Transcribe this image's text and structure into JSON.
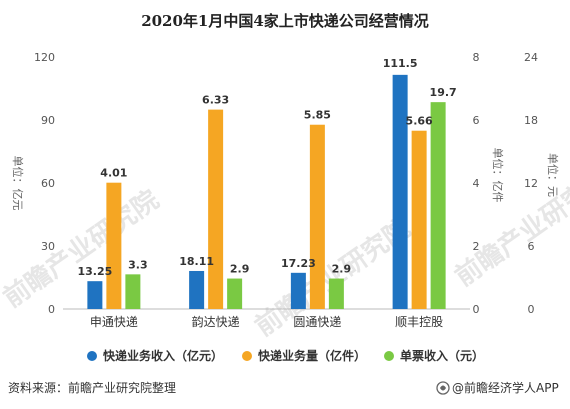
{
  "title": "2020年1月中国4家上市快递公司经营情况",
  "colors": {
    "revenue": "#1f73c1",
    "volume": "#f5a623",
    "price": "#7ac943",
    "axis": "#bbbbbb"
  },
  "chart_data": {
    "type": "bar",
    "categories": [
      "申通快递",
      "韵达快递",
      "圆通快递",
      "顺丰控股"
    ],
    "series": [
      {
        "name": "快递业务收入（亿元）",
        "axis": "left",
        "color": "#1f73c1",
        "values": [
          13.25,
          18.11,
          17.23,
          111.5
        ],
        "labels": [
          "13.25",
          "18.11",
          "17.23",
          "111.5"
        ]
      },
      {
        "name": "快递业务量（亿件）",
        "axis": "right1",
        "color": "#f5a623",
        "values": [
          4.01,
          6.33,
          5.85,
          5.66
        ],
        "labels": [
          "4.01",
          "6.33",
          "5.85",
          "5.66"
        ]
      },
      {
        "name": "单票收入（元）",
        "axis": "right2",
        "color": "#7ac943",
        "values": [
          3.3,
          2.9,
          2.9,
          19.7
        ],
        "labels": [
          "3.3",
          "2.9",
          "2.9",
          "19.7"
        ]
      }
    ],
    "axes": {
      "left": {
        "label": "单位：亿元",
        "min": 0,
        "max": 120,
        "ticks": [
          0,
          30,
          60,
          90,
          120
        ],
        "tick_labels": [
          "0",
          "30",
          "60",
          "90",
          "120"
        ]
      },
      "right1": {
        "label": "单位：亿件",
        "min": 0,
        "max": 8,
        "ticks": [
          0,
          2,
          4,
          6,
          8
        ],
        "tick_labels": [
          "0",
          "2",
          "4",
          "6",
          "8"
        ]
      },
      "right2": {
        "label": "单位：元",
        "min": 0,
        "max": 24,
        "ticks": [
          0,
          6,
          12,
          18,
          24
        ],
        "tick_labels": [
          "0",
          "6",
          "12",
          "18",
          "24"
        ]
      }
    },
    "legend_position": "bottom",
    "grid": false
  },
  "footer": {
    "source": "资料来源：前瞻产业研究院整理",
    "brand": "@前瞻经济学人APP"
  },
  "watermark": "前瞻产业研究院"
}
